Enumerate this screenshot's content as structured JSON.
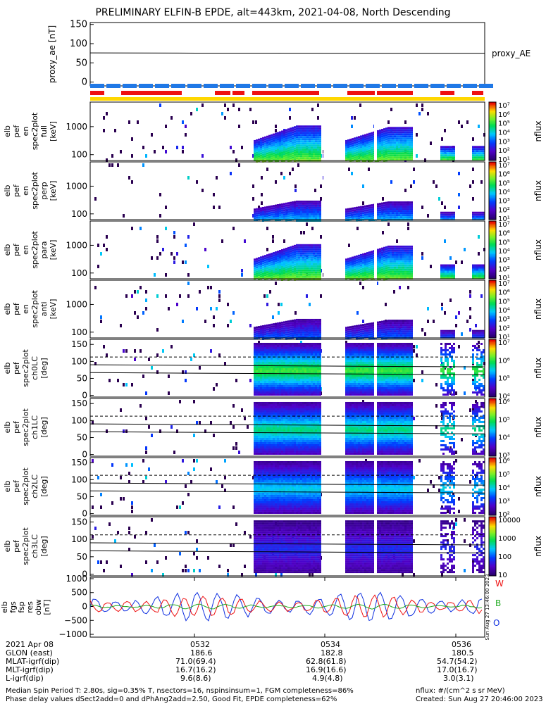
{
  "title": "PRELIMINARY ELFIN-B EPDE, alt=443km, 2021-04-08, North Descending",
  "colors": {
    "blue": "#1f78e6",
    "red": "#ee1010",
    "yellow": "#ffd700",
    "black": "#000000"
  },
  "chart_data": [
    {
      "type": "line",
      "name": "proxy_ae",
      "ylabel": "proxy_ae [nT]",
      "ylim": [
        -10,
        155
      ],
      "yticks": [
        "150",
        "100",
        "50",
        "0"
      ],
      "legend": "proxy_AE",
      "series": [
        {
          "name": "proxy_AE",
          "approx_value": 75
        }
      ]
    },
    {
      "type": "heatmap",
      "ylabel": "elb pef en spec2plot full [keV]",
      "yticks": [
        "1000",
        "100"
      ],
      "colorbar_label": "nflux",
      "colorbar_ticks": [
        "10⁷",
        "10⁶",
        "10⁵",
        "10⁴",
        "10³",
        "10²",
        "10¹"
      ]
    },
    {
      "type": "heatmap",
      "ylabel": "elb pef en spec2plot perp [keV]",
      "yticks": [
        "1000",
        "100"
      ],
      "colorbar_label": "nflux",
      "colorbar_ticks": [
        "10⁷",
        "10⁶",
        "10⁵",
        "10⁴",
        "10³",
        "10²",
        "10¹"
      ]
    },
    {
      "type": "heatmap",
      "ylabel": "elb pef en spec2plot para [keV]",
      "yticks": [
        "1000",
        "100"
      ],
      "colorbar_label": "nflux",
      "colorbar_ticks": [
        "10⁷",
        "10⁶",
        "10⁵",
        "10⁴",
        "10³",
        "10²",
        "10¹"
      ]
    },
    {
      "type": "heatmap",
      "ylabel": "elb pef en spec2plot anti [keV]",
      "yticks": [
        "1000",
        "100"
      ],
      "colorbar_label": "nflux",
      "colorbar_ticks": [
        "10⁷",
        "10⁶",
        "10⁵",
        "10⁴",
        "10³",
        "10²",
        "10¹"
      ]
    },
    {
      "type": "heatmap",
      "ylabel": "elb pef spec2plot ch0LC [deg]",
      "yticks": [
        "150",
        "100",
        "50",
        "0"
      ],
      "colorbar_label": "nflux",
      "colorbar_ticks": [
        "10⁷",
        "10⁶",
        "10⁵",
        "10⁴"
      ]
    },
    {
      "type": "heatmap",
      "ylabel": "elb pef spec2plot ch1LC [deg]",
      "yticks": [
        "150",
        "100",
        "50",
        "0"
      ],
      "colorbar_label": "nflux",
      "colorbar_ticks": [
        "10⁶",
        "10⁵",
        "10⁴",
        "10³"
      ]
    },
    {
      "type": "heatmap",
      "ylabel": "elb pef spec2plot ch2LC [deg]",
      "yticks": [
        "150",
        "100",
        "50",
        "0"
      ],
      "colorbar_label": "nflux",
      "colorbar_ticks": [
        "10⁶",
        "10⁵",
        "10⁴",
        "10³",
        "10²"
      ]
    },
    {
      "type": "heatmap",
      "ylabel": "elb pef spec2plot ch3LC [deg]",
      "yticks": [
        "150",
        "100",
        "50",
        "0"
      ],
      "colorbar_label": "nflux",
      "colorbar_ticks": [
        "10000",
        "1000",
        "100",
        "10"
      ]
    },
    {
      "type": "line",
      "ylabel": "elb fgs fsp res obw [nT]",
      "ylim": [
        -1100,
        1050
      ],
      "yticks": [
        "1000",
        "500",
        "0",
        "−500",
        "−1000"
      ],
      "series": [
        {
          "name": "W",
          "color": "#ee1010"
        },
        {
          "name": "B",
          "color": "#22aa22"
        },
        {
          "name": "O",
          "color": "#1030e0"
        }
      ]
    }
  ],
  "xaxis": {
    "rows": [
      {
        "label": "2021 Apr 08",
        "values": [
          "0532",
          "0534",
          "0536"
        ]
      },
      {
        "label": "GLON (east)",
        "values": [
          "186.6",
          "182.8",
          "180.5"
        ]
      },
      {
        "label": "MLAT-igrf(dip)",
        "values": [
          "71.0(69.4)",
          "62.8(61.8)",
          "54.7(54.2)"
        ]
      },
      {
        "label": "MLT-igrf(dip)",
        "values": [
          "16.7(16.2)",
          "16.9(16.6)",
          "17.0(16.7)"
        ]
      },
      {
        "label": "L-igrf(dip)",
        "values": [
          "9.6(8.6)",
          "4.9(4.8)",
          "3.0(3.1)"
        ]
      }
    ]
  },
  "footer": {
    "line1": "Median Spin Period T: 2.80s, sig=0.35% T, nsectors=16, nspinsinsum=1, FGM completeness=86%",
    "line2": "Phase delay values dSect2add=0 and dPhAng2add=2.50, Good Fit, EPDE completeness=62%",
    "units": "nflux: #/(cm^2 s sr MeV)",
    "created": "Created: Sun Aug 27 20:46:00 2023",
    "side_stamp": "Sun Aug 27 13:46:00 2023"
  }
}
